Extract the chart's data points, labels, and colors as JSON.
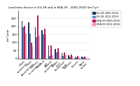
{
  "title": "Land take drivers in EU-28 and in EEA-39 - 2000-2018 (km²/yr)",
  "ylabel": "km²/year",
  "categories": [
    "Urban\ncontinuous",
    "Urban\ndiscontinuous",
    "Industry\n& commerce",
    "Roads &\nrail",
    "Mineral\nextraction",
    "Arable\nland",
    "Permanent\ncrops",
    "Pastures",
    "Forests",
    "Water\nbodies"
  ],
  "series": [
    {
      "label": "EU-28 2000-2018",
      "color": "#1a3a5c",
      "values": [
        235,
        225,
        195,
        175,
        80,
        58,
        32,
        22,
        13,
        10
      ]
    },
    {
      "label": "EU-28 2012-2018",
      "color": "#5b7fbd",
      "values": [
        195,
        155,
        135,
        150,
        18,
        38,
        18,
        13,
        7,
        7
      ]
    },
    {
      "label": "EEA-39 2000-2018",
      "color": "#c2185b",
      "values": [
        205,
        100,
        270,
        185,
        82,
        62,
        36,
        26,
        16,
        12
      ]
    },
    {
      "label": "EEA-39 2012-2018",
      "color": "#f48fb1",
      "values": [
        155,
        75,
        140,
        148,
        20,
        40,
        20,
        15,
        8,
        8
      ]
    }
  ],
  "ylim": [
    0,
    300
  ],
  "yticks": [
    0,
    50,
    100,
    150,
    200,
    250
  ],
  "background_color": "#ffffff",
  "legend_labels": [
    "EU-28 2000-2018",
    "EU-28 2012-2018",
    "EEA-39 2000-2018",
    "EEA-39 2012-2018"
  ],
  "legend_colors": [
    "#1a3a5c",
    "#5b7fbd",
    "#c2185b",
    "#f48fb1"
  ]
}
